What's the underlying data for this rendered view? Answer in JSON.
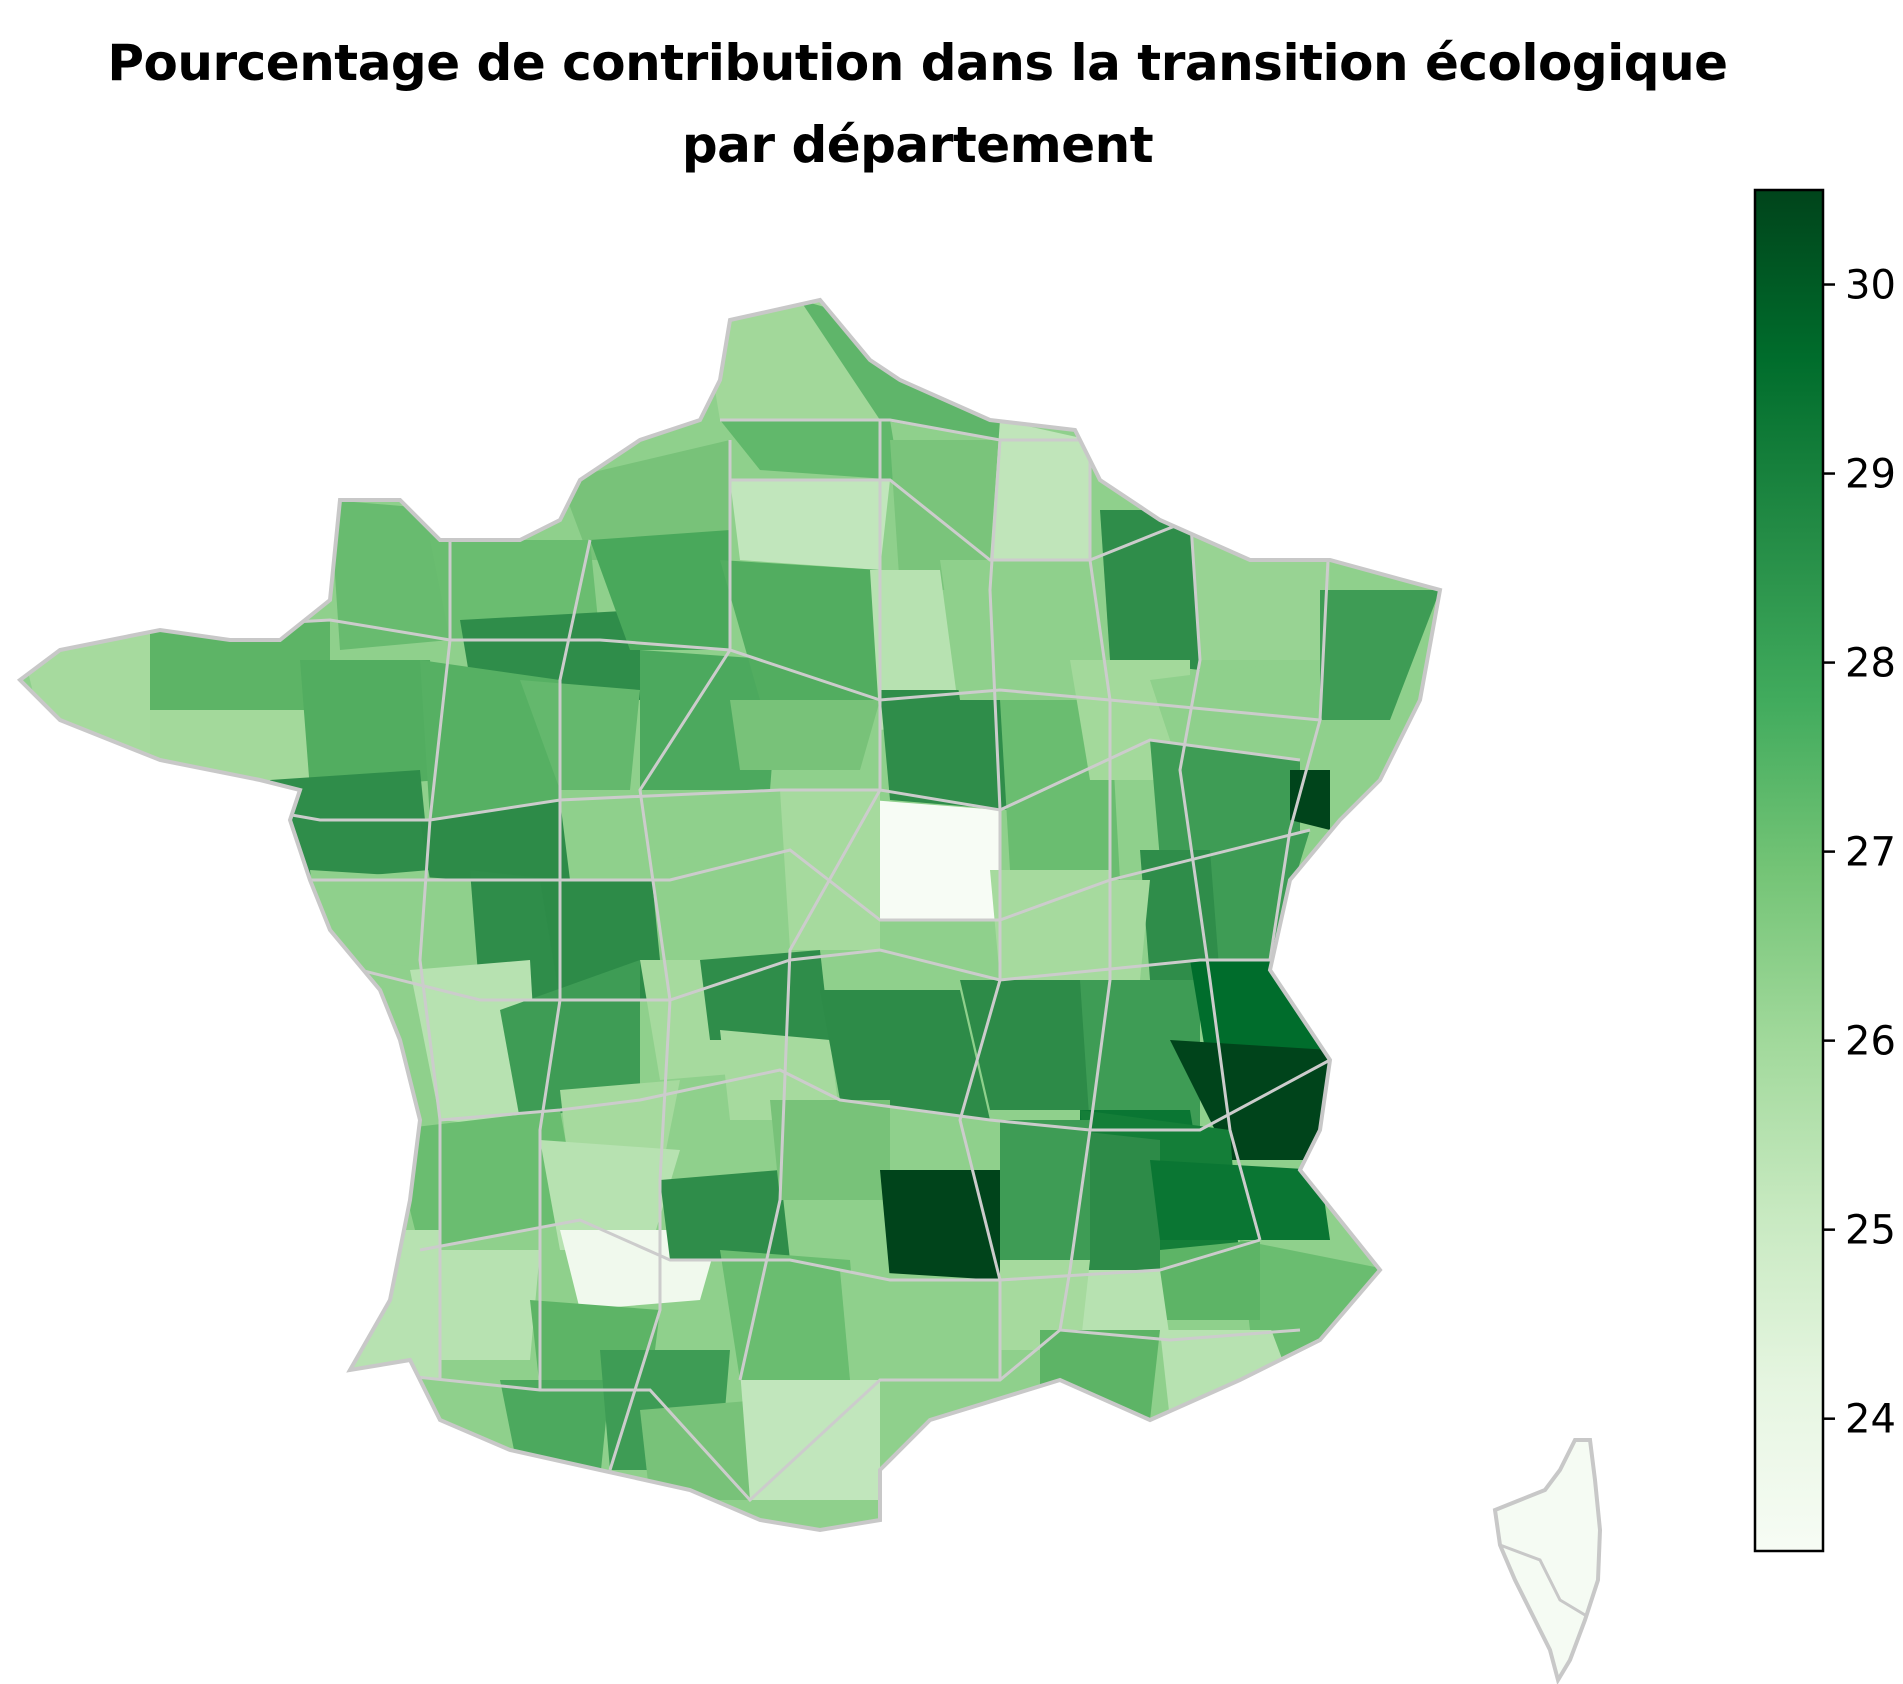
{
  "title_line1": "Pourcentage de contribution dans la transition écologique",
  "title_line2": "par département",
  "colormap": "Greens",
  "map_region": "France (départements)",
  "colorbar": {
    "min": 23.3,
    "max": 30.5,
    "ticks": [
      {
        "value": 24,
        "label": "24"
      },
      {
        "value": 25,
        "label": "25"
      },
      {
        "value": 26,
        "label": "26"
      },
      {
        "value": 27,
        "label": "27"
      },
      {
        "value": 28,
        "label": "28"
      },
      {
        "value": 29,
        "label": "29"
      },
      {
        "value": 30,
        "label": "30"
      }
    ],
    "low_color": "#f7fcf5",
    "high_color": "#00441b"
  },
  "border_color": "#c8c8c8"
}
